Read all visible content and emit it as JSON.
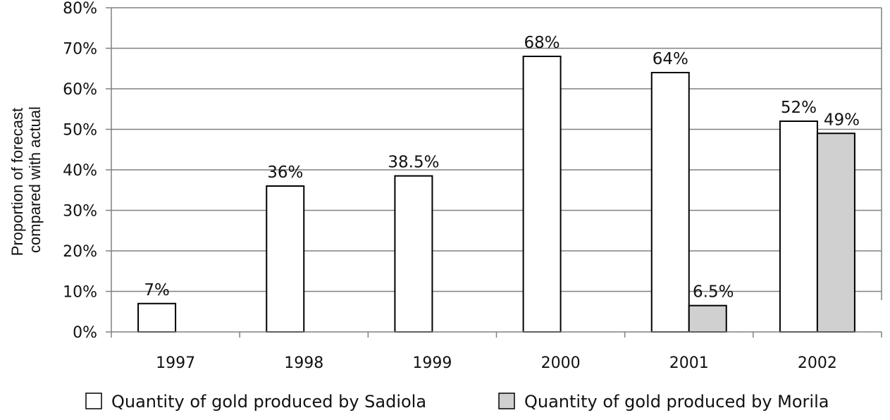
{
  "chart_data": {
    "type": "bar",
    "categories": [
      "1997",
      "1998",
      "1999",
      "2000",
      "2001",
      "2002"
    ],
    "series": [
      {
        "name": "Quantity of gold produced by Sadiola",
        "values": [
          7,
          36,
          38.5,
          68,
          64,
          52
        ],
        "labels": [
          "7%",
          "36%",
          "38.5%",
          "68%",
          "64%",
          "52%"
        ],
        "color": "#ffffff"
      },
      {
        "name": "Quantity of gold produced by Morila",
        "values": [
          null,
          null,
          null,
          null,
          6.5,
          49
        ],
        "labels": [
          null,
          null,
          null,
          null,
          "6.5%",
          "49%"
        ],
        "color": "#d0d0d0"
      }
    ],
    "ylabel_lines": [
      "Proportion of forecast",
      "compared with actual"
    ],
    "xlabel": "",
    "ylim": [
      0,
      80
    ],
    "yticks": [
      0,
      10,
      20,
      30,
      40,
      50,
      60,
      70,
      80
    ],
    "ytick_labels": [
      "0%",
      "10%",
      "20%",
      "30%",
      "40%",
      "50%",
      "60%",
      "70%",
      "80%"
    ],
    "grid": true,
    "legend_position": "bottom",
    "gridline_color": "#808080",
    "bar_edge_color": "#000000"
  }
}
